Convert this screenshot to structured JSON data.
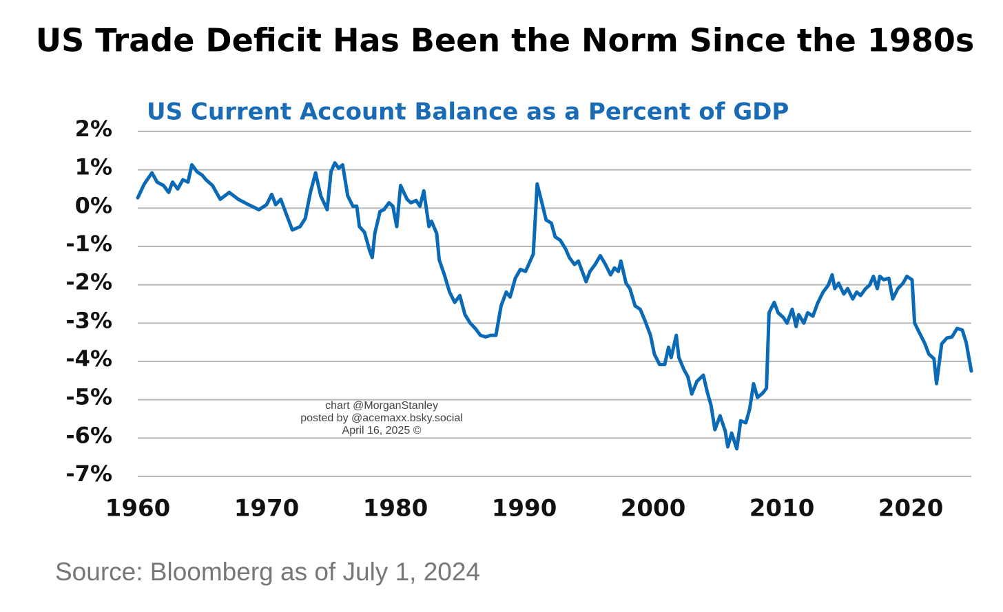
{
  "chart_data": {
    "type": "line",
    "title": "US Trade Deficit Has Been the Norm Since the 1980s",
    "subtitle": "US Current Account Balance as a Percent of GDP",
    "annotations": [
      "chart @MorganStanley",
      "posted by @acemaxx.bsky.social",
      "April 16, 2025 ©"
    ],
    "source": "Source: Bloomberg as of July 1, 2024",
    "color": "#0a6ab5",
    "grid": true,
    "xlim": [
      1960,
      2024.7
    ],
    "xticks": [
      1960,
      1970,
      1980,
      1990,
      2000,
      2010,
      2020
    ],
    "ylim": [
      -7,
      2
    ],
    "yticks": [
      {
        "value": 2,
        "label": "2%"
      },
      {
        "value": 1,
        "label": "1%"
      },
      {
        "value": 0,
        "label": "0%"
      },
      {
        "value": -1,
        "label": "-1%"
      },
      {
        "value": -2,
        "label": "-2%"
      },
      {
        "value": -3,
        "label": "-3%"
      },
      {
        "value": -4,
        "label": "-4%"
      },
      {
        "value": -5,
        "label": "-5%"
      },
      {
        "value": -6,
        "label": "-6%"
      },
      {
        "value": -7,
        "label": "-7%"
      }
    ],
    "x": [
      1960.0,
      1960.5,
      1961.1,
      1961.5,
      1962.0,
      1962.4,
      1962.7,
      1963.1,
      1963.5,
      1963.9,
      1964.2,
      1964.6,
      1965.0,
      1965.3,
      1965.8,
      1966.4,
      1967.1,
      1967.8,
      1968.6,
      1969.4,
      1970.0,
      1970.4,
      1970.7,
      1971.1,
      1971.5,
      1972.0,
      1972.6,
      1973.0,
      1973.4,
      1973.8,
      1974.2,
      1974.7,
      1975.0,
      1975.3,
      1975.6,
      1975.9,
      1976.3,
      1976.7,
      1977.0,
      1977.2,
      1977.6,
      1978.0,
      1978.2,
      1978.4,
      1978.8,
      1979.1,
      1979.5,
      1979.8,
      1980.1,
      1980.4,
      1980.9,
      1981.2,
      1981.6,
      1981.9,
      1982.2,
      1982.6,
      1982.8,
      1983.2,
      1983.4,
      1983.8,
      1984.2,
      1984.6,
      1985.0,
      1985.4,
      1985.8,
      1986.2,
      1986.6,
      1987.0,
      1987.4,
      1987.8,
      1988.2,
      1988.6,
      1988.9,
      1989.3,
      1989.7,
      1990.1,
      1990.5,
      1990.7,
      1991.0,
      1991.3,
      1991.7,
      1992.1,
      1992.4,
      1992.8,
      1993.2,
      1993.5,
      1993.9,
      1994.2,
      1994.5,
      1994.8,
      1995.1,
      1995.5,
      1995.9,
      1996.3,
      1996.7,
      1997.0,
      1997.3,
      1997.5,
      1997.9,
      1998.2,
      1998.6,
      1999.0,
      1999.4,
      1999.8,
      2000.1,
      2000.5,
      2000.9,
      2001.2,
      2001.4,
      2001.8,
      2002.0,
      2002.4,
      2002.7,
      2003.0,
      2003.4,
      2003.9,
      2004.2,
      2004.5,
      2004.8,
      2005.2,
      2005.6,
      2005.8,
      2006.1,
      2006.5,
      2006.8,
      2007.2,
      2007.5,
      2007.8,
      2008.1,
      2008.5,
      2008.8,
      2009.0,
      2009.4,
      2009.7,
      2010.1,
      2010.4,
      2010.8,
      2011.1,
      2011.3,
      2011.7,
      2012.0,
      2012.4,
      2012.8,
      2013.2,
      2013.6,
      2013.9,
      2014.1,
      2014.4,
      2014.8,
      2015.1,
      2015.5,
      2015.8,
      2016.1,
      2016.5,
      2016.8,
      2017.1,
      2017.4,
      2017.6,
      2017.9,
      2018.3,
      2018.6,
      2019.0,
      2019.4,
      2019.7,
      2020.1,
      2020.3,
      2020.7,
      2021.1,
      2021.4,
      2021.8,
      2022.0,
      2022.4,
      2022.8,
      2023.2,
      2023.6,
      2024.0,
      2024.3,
      2024.7
    ],
    "values": [
      0.27,
      0.63,
      0.92,
      0.68,
      0.59,
      0.41,
      0.68,
      0.5,
      0.74,
      0.68,
      1.13,
      0.95,
      0.86,
      0.74,
      0.59,
      0.23,
      0.41,
      0.23,
      0.09,
      -0.04,
      0.09,
      0.36,
      0.09,
      0.23,
      -0.13,
      -0.57,
      -0.48,
      -0.27,
      0.41,
      0.92,
      0.32,
      -0.04,
      0.95,
      1.18,
      1.04,
      1.13,
      0.32,
      0.05,
      0.05,
      -0.48,
      -0.63,
      -1.11,
      -1.29,
      -0.66,
      -0.09,
      -0.04,
      0.14,
      0.05,
      -0.48,
      0.59,
      0.23,
      0.14,
      0.2,
      0.05,
      0.45,
      -0.48,
      -0.34,
      -0.66,
      -1.35,
      -1.74,
      -2.19,
      -2.46,
      -2.28,
      -2.78,
      -3.0,
      -3.14,
      -3.32,
      -3.36,
      -3.32,
      -3.32,
      -2.55,
      -2.19,
      -2.32,
      -1.83,
      -1.6,
      -1.65,
      -1.35,
      -1.2,
      0.63,
      0.23,
      -0.31,
      -0.39,
      -0.75,
      -0.84,
      -1.06,
      -1.29,
      -1.47,
      -1.38,
      -1.65,
      -1.92,
      -1.65,
      -1.47,
      -1.24,
      -1.47,
      -1.74,
      -1.56,
      -1.65,
      -1.38,
      -1.96,
      -2.1,
      -2.55,
      -2.64,
      -2.96,
      -3.32,
      -3.81,
      -4.08,
      -4.08,
      -3.63,
      -3.9,
      -3.32,
      -3.9,
      -4.22,
      -4.4,
      -4.85,
      -4.52,
      -4.36,
      -4.79,
      -5.15,
      -5.78,
      -5.42,
      -5.82,
      -6.23,
      -5.87,
      -6.28,
      -5.55,
      -5.6,
      -5.24,
      -4.58,
      -4.94,
      -4.83,
      -4.7,
      -2.73,
      -2.46,
      -2.73,
      -2.85,
      -3.0,
      -2.64,
      -3.09,
      -2.78,
      -3.0,
      -2.73,
      -2.82,
      -2.46,
      -2.19,
      -2.01,
      -1.74,
      -2.1,
      -1.96,
      -2.24,
      -2.1,
      -2.37,
      -2.19,
      -2.28,
      -2.1,
      -2.01,
      -1.78,
      -2.1,
      -1.78,
      -1.87,
      -1.83,
      -2.37,
      -2.1,
      -1.96,
      -1.78,
      -1.87,
      -3.0,
      -3.27,
      -3.54,
      -3.81,
      -3.93,
      -4.58,
      -3.54,
      -3.39,
      -3.36,
      -3.14,
      -3.18,
      -3.5,
      -4.25
    ]
  }
}
